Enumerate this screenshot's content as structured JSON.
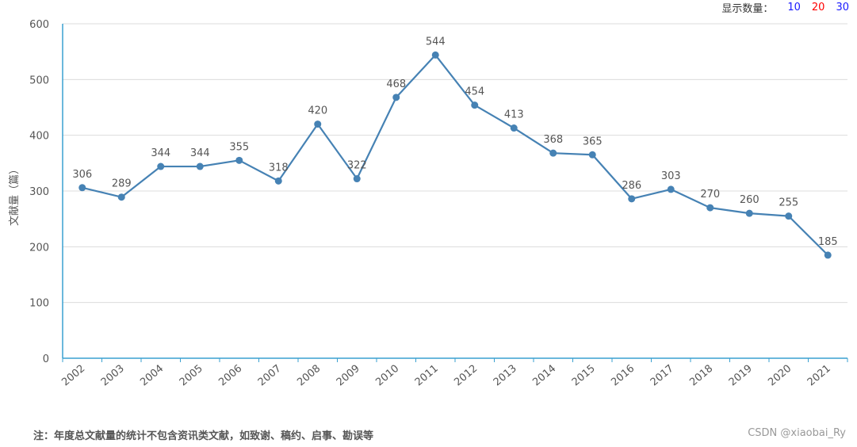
{
  "display_count": {
    "label": "显示数量：",
    "options": [
      {
        "value": "10",
        "color": "#1a1aff"
      },
      {
        "value": "20",
        "color": "#ff0000"
      },
      {
        "value": "30",
        "color": "#1a1aff"
      }
    ]
  },
  "footnote": "注：年度总文献量的统计不包含资讯类文献，如致谢、稿约、启事、勘误等",
  "watermark": "CSDN @xiaobai_Ry",
  "chart_data": {
    "type": "line",
    "title": "",
    "xlabel": "",
    "ylabel": "文献量（篇）",
    "ylim": [
      0,
      600
    ],
    "yticks": [
      0,
      100,
      200,
      300,
      400,
      500,
      600
    ],
    "grid": true,
    "line_color": "#4682b4",
    "axis_color": "#3aa0d0",
    "categories": [
      "2002",
      "2003",
      "2004",
      "2005",
      "2006",
      "2007",
      "2008",
      "2009",
      "2010",
      "2011",
      "2012",
      "2013",
      "2014",
      "2015",
      "2016",
      "2017",
      "2018",
      "2019",
      "2020",
      "2021"
    ],
    "values": [
      306,
      289,
      344,
      344,
      355,
      318,
      420,
      322,
      468,
      544,
      454,
      413,
      368,
      365,
      286,
      303,
      270,
      260,
      255,
      185
    ]
  }
}
